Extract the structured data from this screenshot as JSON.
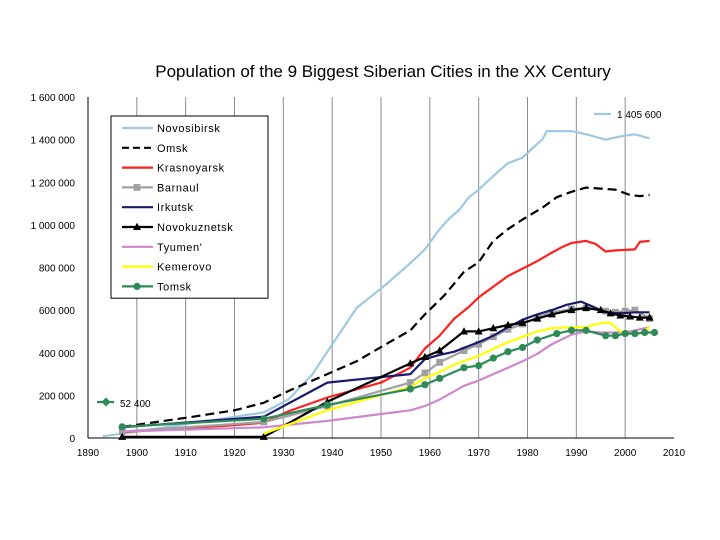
{
  "chart_data": {
    "type": "line",
    "title": "Population of the 9 Biggest Siberian Cities in the XX Century",
    "xlabel": "",
    "ylabel": "",
    "xlim": [
      1890,
      2010
    ],
    "ylim": [
      0,
      1600000
    ],
    "x_ticks": [
      1890,
      1900,
      1910,
      1920,
      1930,
      1940,
      1950,
      1960,
      1970,
      1980,
      1990,
      2000,
      2010
    ],
    "x_tick_labels": [
      "1890",
      "1900",
      "1910",
      "1920",
      "1930",
      "1940",
      "1950",
      "1960",
      "1970",
      "1980",
      "1990",
      "2000",
      "2010"
    ],
    "y_ticks": [
      0,
      200000,
      400000,
      600000,
      800000,
      1000000,
      1200000,
      1400000,
      1600000
    ],
    "y_tick_labels": [
      "0",
      "200 000",
      "400 000",
      "600 000",
      "800 000",
      "1 000 000",
      "1 200 000",
      "1 400 000",
      "1 600 000"
    ],
    "grid": "vertical",
    "legend_position": "top-left",
    "annotations": [
      {
        "text": "1 405 600",
        "series": "Novosibirsk"
      },
      {
        "text": "52 400",
        "series": "Tomsk"
      }
    ],
    "series": [
      {
        "name": "Novosibirsk",
        "color": "#9ecae1",
        "dash": "",
        "marker": "none",
        "points": [
          [
            1893,
            8000
          ],
          [
            1897,
            20000
          ],
          [
            1926,
            120000
          ],
          [
            1931,
            180000
          ],
          [
            1936,
            300000
          ],
          [
            1939,
            405000
          ],
          [
            1945,
            610000
          ],
          [
            1951,
            720000
          ],
          [
            1956,
            820000
          ],
          [
            1959,
            885000
          ],
          [
            1962,
            980000
          ],
          [
            1964,
            1030000
          ],
          [
            1966,
            1070000
          ],
          [
            1968,
            1130000
          ],
          [
            1970,
            1165000
          ],
          [
            1973,
            1230000
          ],
          [
            1976,
            1290000
          ],
          [
            1979,
            1315000
          ],
          [
            1981,
            1360000
          ],
          [
            1983,
            1400000
          ],
          [
            1984,
            1440000
          ],
          [
            1986,
            1440000
          ],
          [
            1989,
            1440000
          ],
          [
            1992,
            1425000
          ],
          [
            1996,
            1400000
          ],
          [
            1999,
            1415000
          ],
          [
            2002,
            1425000
          ],
          [
            2005,
            1405600
          ]
        ]
      },
      {
        "name": "Omsk",
        "color": "#000000",
        "dash": "9,5",
        "marker": "none",
        "points": [
          [
            1897,
            52000
          ],
          [
            1910,
            95000
          ],
          [
            1920,
            130000
          ],
          [
            1926,
            165000
          ],
          [
            1931,
            220000
          ],
          [
            1939,
            300000
          ],
          [
            1945,
            360000
          ],
          [
            1951,
            440000
          ],
          [
            1956,
            505000
          ],
          [
            1959,
            580000
          ],
          [
            1963,
            670000
          ],
          [
            1967,
            780000
          ],
          [
            1970,
            825000
          ],
          [
            1973,
            925000
          ],
          [
            1976,
            980000
          ],
          [
            1979,
            1025000
          ],
          [
            1983,
            1080000
          ],
          [
            1986,
            1130000
          ],
          [
            1989,
            1155000
          ],
          [
            1992,
            1175000
          ],
          [
            1995,
            1170000
          ],
          [
            1998,
            1165000
          ],
          [
            2001,
            1140000
          ],
          [
            2003,
            1135000
          ],
          [
            2005,
            1140000
          ]
        ]
      },
      {
        "name": "Krasnoyarsk",
        "color": "#ff2020",
        "dash": "",
        "marker": "none",
        "points": [
          [
            1897,
            27000
          ],
          [
            1920,
            60000
          ],
          [
            1926,
            72000
          ],
          [
            1931,
            125000
          ],
          [
            1939,
            190000
          ],
          [
            1950,
            260000
          ],
          [
            1956,
            330000
          ],
          [
            1959,
            420000
          ],
          [
            1962,
            480000
          ],
          [
            1965,
            560000
          ],
          [
            1968,
            615000
          ],
          [
            1970,
            660000
          ],
          [
            1973,
            710000
          ],
          [
            1976,
            760000
          ],
          [
            1979,
            795000
          ],
          [
            1982,
            830000
          ],
          [
            1985,
            870000
          ],
          [
            1987,
            895000
          ],
          [
            1989,
            915000
          ],
          [
            1992,
            925000
          ],
          [
            1994,
            910000
          ],
          [
            1996,
            875000
          ],
          [
            1998,
            880000
          ],
          [
            2002,
            885000
          ],
          [
            2003,
            920000
          ],
          [
            2005,
            925000
          ]
        ]
      },
      {
        "name": "Barnaul",
        "color": "#a0a0a0",
        "dash": "",
        "marker": "square",
        "points": [
          [
            1897,
            30000
          ],
          [
            1926,
            75000
          ],
          [
            1939,
            150000
          ],
          [
            1956,
            260000
          ],
          [
            1959,
            305000
          ],
          [
            1962,
            355000
          ],
          [
            1967,
            410000
          ],
          [
            1970,
            440000
          ],
          [
            1973,
            475000
          ],
          [
            1976,
            510000
          ],
          [
            1979,
            535000
          ],
          [
            1982,
            565000
          ],
          [
            1985,
            590000
          ],
          [
            1989,
            605000
          ],
          [
            1992,
            610000
          ],
          [
            1996,
            595000
          ],
          [
            1998,
            590000
          ],
          [
            2000,
            595000
          ],
          [
            2002,
            600000
          ],
          [
            2005,
            560000
          ]
        ]
      },
      {
        "name": "Irkutsk",
        "color": "#1a1a6e",
        "dash": "",
        "marker": "none",
        "points": [
          [
            1897,
            50000
          ],
          [
            1926,
            100000
          ],
          [
            1939,
            260000
          ],
          [
            1956,
            300000
          ],
          [
            1959,
            370000
          ],
          [
            1962,
            390000
          ],
          [
            1965,
            405000
          ],
          [
            1970,
            450000
          ],
          [
            1973,
            480000
          ],
          [
            1976,
            520000
          ],
          [
            1979,
            555000
          ],
          [
            1982,
            580000
          ],
          [
            1985,
            600000
          ],
          [
            1988,
            625000
          ],
          [
            1991,
            640000
          ],
          [
            1993,
            620000
          ],
          [
            1996,
            590000
          ],
          [
            1999,
            585000
          ],
          [
            2002,
            590000
          ],
          [
            2005,
            590000
          ]
        ]
      },
      {
        "name": "Novokuznetsk",
        "color": "#000000",
        "dash": "",
        "marker": "triangle",
        "points": [
          [
            1897,
            5000
          ],
          [
            1926,
            5000
          ],
          [
            1939,
            170000
          ],
          [
            1956,
            350000
          ],
          [
            1959,
            380000
          ],
          [
            1962,
            410000
          ],
          [
            1967,
            500000
          ],
          [
            1970,
            500000
          ],
          [
            1973,
            515000
          ],
          [
            1976,
            530000
          ],
          [
            1979,
            540000
          ],
          [
            1982,
            560000
          ],
          [
            1985,
            580000
          ],
          [
            1989,
            600000
          ],
          [
            1992,
            610000
          ],
          [
            1995,
            600000
          ],
          [
            1997,
            585000
          ],
          [
            1999,
            575000
          ],
          [
            2001,
            570000
          ],
          [
            2003,
            565000
          ],
          [
            2005,
            565000
          ]
        ]
      },
      {
        "name": "Tyumen'",
        "color": "#cc88cc",
        "dash": "",
        "marker": "none",
        "points": [
          [
            1897,
            30000
          ],
          [
            1926,
            50000
          ],
          [
            1939,
            80000
          ],
          [
            1956,
            130000
          ],
          [
            1959,
            150000
          ],
          [
            1962,
            180000
          ],
          [
            1967,
            245000
          ],
          [
            1970,
            270000
          ],
          [
            1973,
            300000
          ],
          [
            1976,
            330000
          ],
          [
            1979,
            360000
          ],
          [
            1982,
            395000
          ],
          [
            1985,
            440000
          ],
          [
            1989,
            485000
          ],
          [
            1992,
            500000
          ],
          [
            1995,
            495000
          ],
          [
            1998,
            495000
          ],
          [
            2001,
            500000
          ],
          [
            2003,
            510000
          ],
          [
            2005,
            520000
          ]
        ]
      },
      {
        "name": "Kemerovo",
        "color": "#ffff00",
        "dash": "",
        "marker": "none",
        "points": [
          [
            1926,
            20000
          ],
          [
            1939,
            130000
          ],
          [
            1956,
            240000
          ],
          [
            1959,
            280000
          ],
          [
            1962,
            310000
          ],
          [
            1965,
            345000
          ],
          [
            1970,
            385000
          ],
          [
            1975,
            440000
          ],
          [
            1979,
            475000
          ],
          [
            1982,
            500000
          ],
          [
            1985,
            515000
          ],
          [
            1989,
            520000
          ],
          [
            1992,
            520000
          ],
          [
            1995,
            540000
          ],
          [
            1997,
            540000
          ],
          [
            1999,
            500000
          ],
          [
            2001,
            490000
          ],
          [
            2003,
            490000
          ],
          [
            2005,
            520000
          ]
        ]
      },
      {
        "name": "Tomsk",
        "color": "#2e8b57",
        "dash": "",
        "marker": "circle",
        "points": [
          [
            1897,
            52400
          ],
          [
            1926,
            90000
          ],
          [
            1939,
            155000
          ],
          [
            1956,
            230000
          ],
          [
            1959,
            250000
          ],
          [
            1962,
            280000
          ],
          [
            1967,
            330000
          ],
          [
            1970,
            340000
          ],
          [
            1973,
            375000
          ],
          [
            1976,
            405000
          ],
          [
            1979,
            425000
          ],
          [
            1982,
            460000
          ],
          [
            1986,
            490000
          ],
          [
            1989,
            505000
          ],
          [
            1992,
            505000
          ],
          [
            1996,
            480000
          ],
          [
            1998,
            480000
          ],
          [
            2000,
            490000
          ],
          [
            2002,
            490000
          ],
          [
            2004,
            495000
          ],
          [
            2006,
            495000
          ]
        ]
      }
    ]
  }
}
